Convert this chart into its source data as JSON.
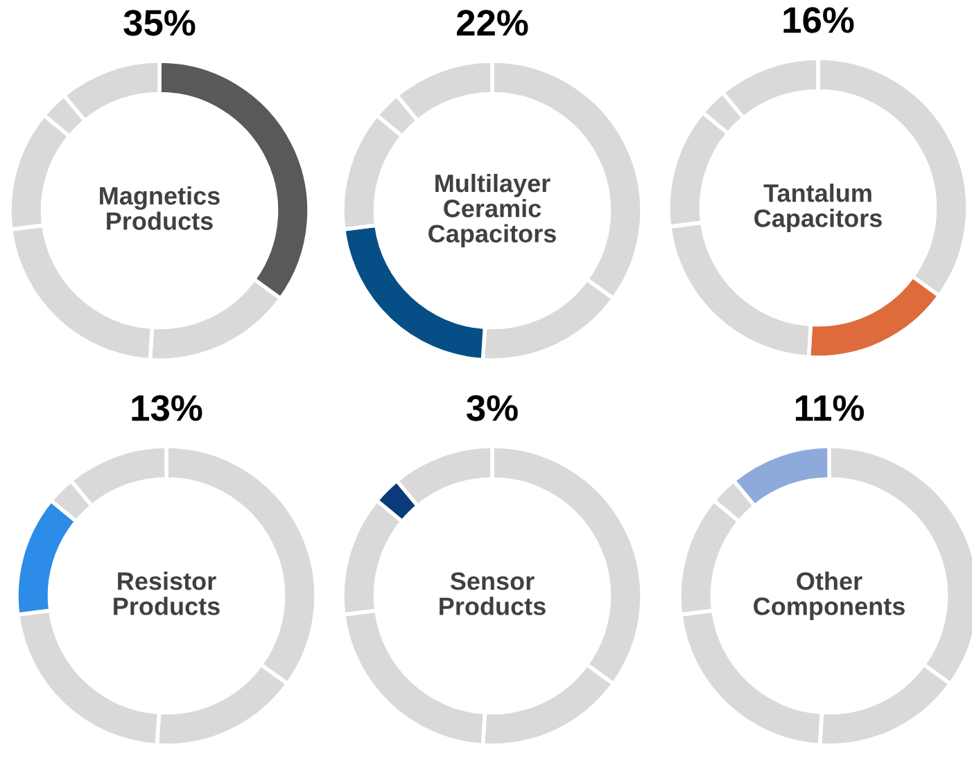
{
  "chart_data": [
    {
      "type": "donut",
      "title": "35%",
      "annotations": [
        "Magnetics Products"
      ],
      "categories": [
        null,
        null,
        null,
        null,
        null,
        null
      ],
      "values": [
        35,
        16,
        22,
        13,
        3,
        11
      ],
      "colors": [
        "#595959",
        "#d9d9d9",
        "#d9d9d9",
        "#d9d9d9",
        "#d9d9d9",
        "#d9d9d9"
      ]
    },
    {
      "type": "donut",
      "title": "22%",
      "annotations": [
        "Multilayer Ceramic Capacitors"
      ],
      "categories": [
        null,
        null,
        null,
        null,
        null,
        null
      ],
      "values": [
        35,
        16,
        22,
        13,
        3,
        11
      ],
      "colors": [
        "#d9d9d9",
        "#d9d9d9",
        "#064f86",
        "#d9d9d9",
        "#d9d9d9",
        "#d9d9d9"
      ]
    },
    {
      "type": "donut",
      "title": "16%",
      "annotations": [
        "Tantalum Capacitors"
      ],
      "categories": [
        null,
        null,
        null,
        null,
        null,
        null
      ],
      "values": [
        35,
        16,
        22,
        13,
        3,
        11
      ],
      "colors": [
        "#d9d9d9",
        "#dd6b3c",
        "#d9d9d9",
        "#d9d9d9",
        "#d9d9d9",
        "#d9d9d9"
      ]
    },
    {
      "type": "donut",
      "title": "13%",
      "annotations": [
        "Resistor Products"
      ],
      "categories": [
        null,
        null,
        null,
        null,
        null,
        null
      ],
      "values": [
        35,
        16,
        22,
        13,
        3,
        11
      ],
      "colors": [
        "#d9d9d9",
        "#d9d9d9",
        "#d9d9d9",
        "#2c8ce8",
        "#d9d9d9",
        "#d9d9d9"
      ]
    },
    {
      "type": "donut",
      "title": "3%",
      "annotations": [
        "Sensor Products"
      ],
      "categories": [
        null,
        null,
        null,
        null,
        null,
        null
      ],
      "values": [
        35,
        16,
        22,
        13,
        3,
        11
      ],
      "colors": [
        "#d9d9d9",
        "#d9d9d9",
        "#d9d9d9",
        "#d9d9d9",
        "#0b3a7a",
        "#d9d9d9"
      ]
    },
    {
      "type": "donut",
      "title": "11%",
      "annotations": [
        "Other Components"
      ],
      "categories": [
        null,
        null,
        null,
        null,
        null,
        null
      ],
      "values": [
        35,
        16,
        22,
        13,
        3,
        11
      ],
      "colors": [
        "#d9d9d9",
        "#d9d9d9",
        "#d9d9d9",
        "#d9d9d9",
        "#d9d9d9",
        "#8eaadb"
      ]
    }
  ]
}
